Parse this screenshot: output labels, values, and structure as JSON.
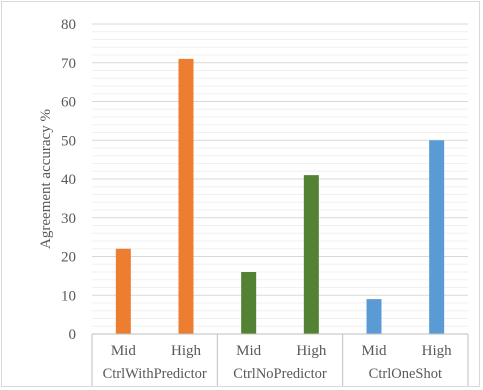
{
  "chart_data": {
    "type": "bar",
    "groups": [
      "CtrlWithPredictor",
      "CtrlNoPredictor",
      "CtrlOneShot"
    ],
    "sub_categories": [
      "Mid",
      "High"
    ],
    "values": [
      [
        22,
        71
      ],
      [
        16,
        41
      ],
      [
        9,
        50
      ]
    ],
    "group_colors": [
      "#ed7d31",
      "#548235",
      "#5b9bd5"
    ],
    "title": "",
    "xlabel": "",
    "ylabel": "Agreement  accuracy  %",
    "ylim": [
      0,
      80
    ],
    "yticks": [
      0,
      10,
      20,
      30,
      40,
      50,
      60,
      70,
      80
    ],
    "grid": true,
    "minor_gridlines": true,
    "legend": "none"
  }
}
